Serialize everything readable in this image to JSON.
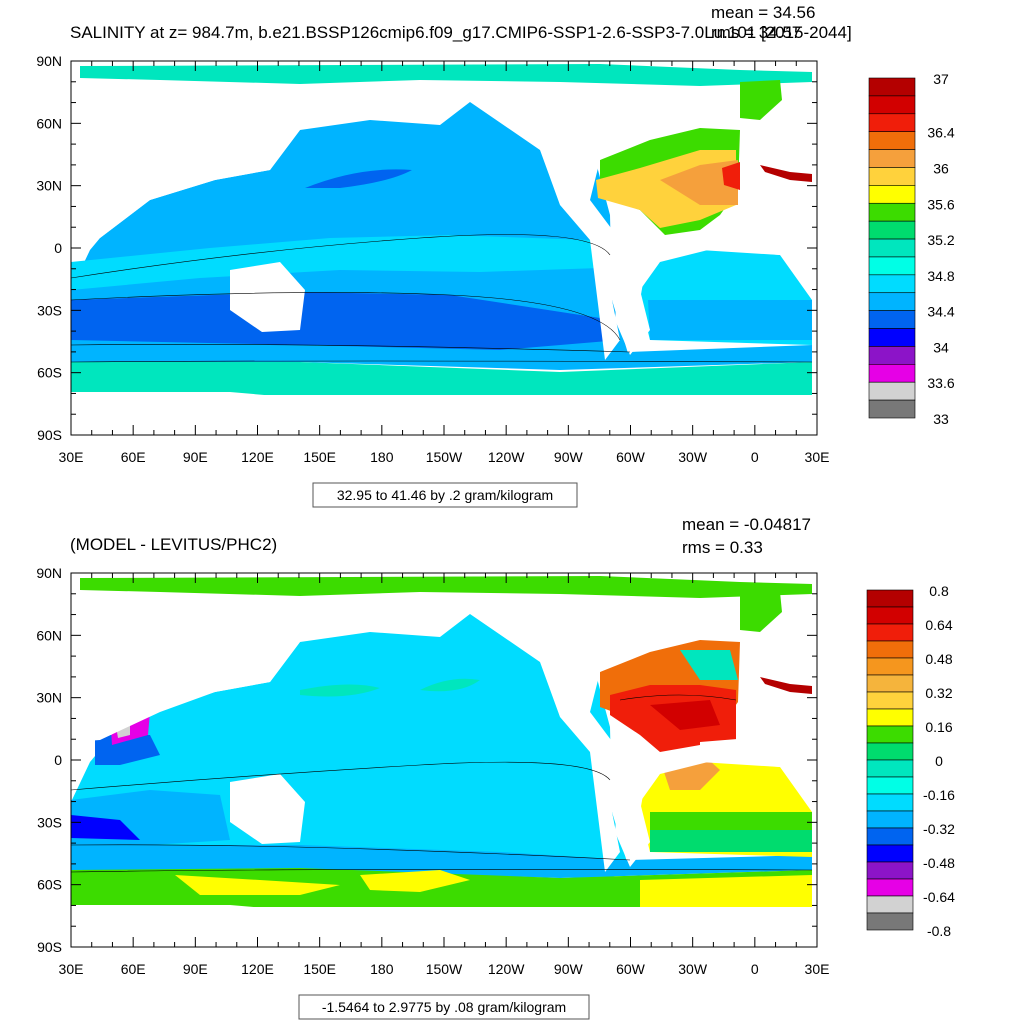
{
  "top_panel": {
    "title": "SALINITY at z= 984.7m, b.e21.BSSP126cmip6.f09_g17.CMIP6-SSP1-2.6-SSP3-7.0Lu.101 [2015-2044]",
    "mean_label": "mean = 34.56",
    "rms_label": "rms = 34.57",
    "range_label": "32.95 to 41.46 by .2 gram/kilogram",
    "colorbar": {
      "labels": [
        "37",
        "36.4",
        "36",
        "35.6",
        "35.2",
        "34.8",
        "34.4",
        "34",
        "33.6",
        "33"
      ],
      "colors": [
        "#b40000",
        "#d20000",
        "#f01e0a",
        "#f06e0a",
        "#f5a03c",
        "#ffd23c",
        "#ffff00",
        "#3cdc00",
        "#00dc6e",
        "#00e6be",
        "#00ffe6",
        "#00dcff",
        "#00b4ff",
        "#0064f0",
        "#0000ff",
        "#8c14c8",
        "#e600e6",
        "#d2d2d2",
        "#787878"
      ]
    }
  },
  "bottom_panel": {
    "title": "(MODEL - LEVITUS/PHC2)",
    "mean_label": "mean = -0.04817",
    "rms_label": "rms = 0.33",
    "range_label": "-1.5464 to 2.9775 by .08 gram/kilogram",
    "colorbar": {
      "labels": [
        "0.8",
        "0.64",
        "0.48",
        "0.32",
        "0.16",
        "0",
        "-0.16",
        "-0.32",
        "-0.48",
        "-0.64",
        "-0.8"
      ],
      "colors": [
        "#b40000",
        "#d20000",
        "#f01e0a",
        "#f06e0a",
        "#f5961e",
        "#f5b43c",
        "#ffd23c",
        "#ffff00",
        "#3cdc00",
        "#00dc6e",
        "#00e6be",
        "#00ffe6",
        "#00dcff",
        "#00b4ff",
        "#0064f0",
        "#0000ff",
        "#8c14c8",
        "#e600e6",
        "#d2d2d2",
        "#787878"
      ]
    }
  },
  "axes": {
    "lat_labels": [
      "90N",
      "60N",
      "30N",
      "0",
      "30S",
      "60S",
      "90S"
    ],
    "lon_labels": [
      "30E",
      "60E",
      "90E",
      "120E",
      "150E",
      "180",
      "150W",
      "120W",
      "90W",
      "60W",
      "30W",
      "0",
      "30E"
    ]
  },
  "colors": {
    "ocean_top_base": "#00b4ff",
    "ocean_bottom_base": "#00dcff",
    "land": "#ffffff"
  }
}
